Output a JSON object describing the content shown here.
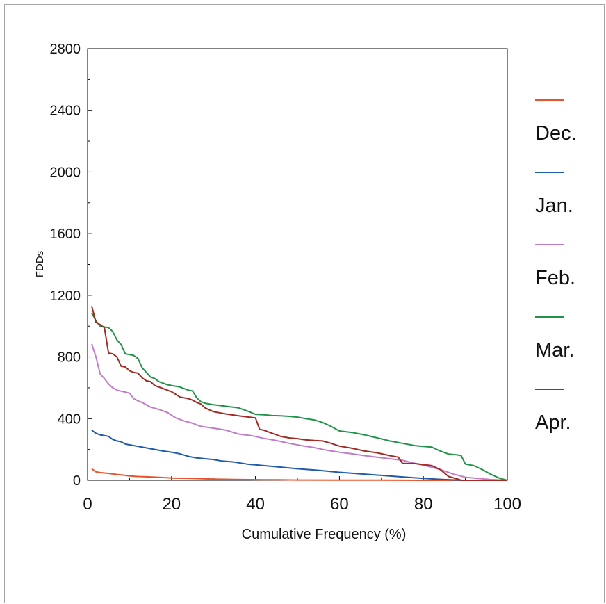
{
  "chart_data": {
    "type": "line",
    "title": "",
    "xlabel": "Cumulative Frequency (%)",
    "ylabel": "FDDs",
    "xlim": [
      0,
      100
    ],
    "ylim": [
      0,
      2800
    ],
    "xticks": [
      0,
      20,
      40,
      60,
      80,
      100
    ],
    "yticks": [
      0,
      400,
      800,
      1200,
      1600,
      2000,
      2400,
      2800
    ],
    "grid": false,
    "legend_position": "right",
    "series": [
      {
        "name": "Dec.",
        "color": "#e8532b",
        "x": [
          1,
          2,
          3,
          5,
          7,
          9,
          10,
          12,
          15,
          18,
          20,
          25,
          30,
          35,
          40,
          45,
          50,
          60,
          70,
          80,
          90,
          100
        ],
        "y": [
          75,
          55,
          50,
          45,
          38,
          32,
          28,
          25,
          22,
          18,
          15,
          12,
          8,
          6,
          4,
          3,
          2,
          1,
          1,
          0,
          0,
          0
        ]
      },
      {
        "name": "Jan.",
        "color": "#1f5ba8",
        "x": [
          1,
          2,
          3,
          4,
          5,
          6,
          7,
          8,
          9,
          10,
          12,
          14,
          16,
          18,
          20,
          22,
          24,
          26,
          28,
          30,
          32,
          35,
          38,
          40,
          42,
          45,
          48,
          50,
          55,
          60,
          65,
          70,
          75,
          80,
          85,
          88,
          90,
          95,
          100
        ],
        "y": [
          325,
          305,
          295,
          290,
          285,
          265,
          255,
          250,
          235,
          230,
          220,
          210,
          200,
          190,
          182,
          172,
          155,
          145,
          140,
          135,
          125,
          118,
          105,
          100,
          95,
          88,
          80,
          75,
          65,
          52,
          42,
          32,
          22,
          12,
          5,
          2,
          0,
          0,
          0
        ]
      },
      {
        "name": "Feb.",
        "color": "#c07cc8",
        "x": [
          1,
          2,
          3,
          4,
          5,
          6,
          7,
          8,
          9,
          10,
          11,
          12,
          13,
          15,
          17,
          19,
          21,
          23,
          25,
          27,
          30,
          33,
          36,
          39,
          42,
          45,
          48,
          51,
          54,
          57,
          60,
          63,
          66,
          69,
          72,
          75,
          78,
          81,
          84,
          87,
          90,
          93,
          96,
          100
        ],
        "y": [
          885,
          800,
          690,
          660,
          625,
          600,
          585,
          578,
          572,
          565,
          530,
          515,
          505,
          475,
          460,
          440,
          405,
          385,
          370,
          350,
          338,
          325,
          300,
          290,
          272,
          258,
          240,
          225,
          212,
          195,
          182,
          172,
          160,
          150,
          140,
          130,
          110,
          92,
          70,
          42,
          20,
          12,
          5,
          0
        ]
      },
      {
        "name": "Mar.",
        "color": "#22934a",
        "x": [
          1,
          2,
          3,
          4,
          5,
          6,
          7,
          8,
          9,
          10,
          11,
          12,
          13,
          14,
          15,
          16,
          17,
          18,
          19,
          20,
          22,
          24,
          25,
          26,
          27,
          28,
          30,
          33,
          36,
          38,
          40,
          42,
          44,
          46,
          48,
          50,
          52,
          54,
          56,
          58,
          60,
          63,
          66,
          69,
          72,
          75,
          78,
          80,
          82,
          84,
          86,
          88,
          89,
          90,
          92,
          94,
          96,
          98,
          100
        ],
        "y": [
          1085,
          1035,
          1000,
          995,
          990,
          965,
          910,
          880,
          820,
          815,
          810,
          790,
          730,
          700,
          670,
          660,
          640,
          630,
          620,
          615,
          605,
          585,
          580,
          535,
          510,
          500,
          490,
          480,
          470,
          450,
          428,
          425,
          420,
          418,
          415,
          410,
          400,
          392,
          375,
          350,
          320,
          310,
          295,
          275,
          255,
          240,
          225,
          220,
          215,
          190,
          170,
          165,
          160,
          105,
          95,
          70,
          40,
          15,
          0
        ]
      },
      {
        "name": "Apr.",
        "color": "#a12b23",
        "x": [
          1,
          2,
          3,
          4,
          5,
          6,
          7,
          8,
          9,
          10,
          11,
          12,
          13,
          14,
          15,
          16,
          17,
          18,
          19,
          20,
          22,
          24,
          25,
          26,
          27,
          28,
          30,
          33,
          36,
          40,
          41,
          42,
          44,
          46,
          48,
          50,
          52,
          54,
          56,
          58,
          60,
          63,
          66,
          69,
          72,
          74,
          75,
          78,
          80,
          82,
          84,
          86,
          88,
          89,
          90,
          95,
          100
        ],
        "y": [
          1130,
          1025,
          1010,
          990,
          825,
          820,
          800,
          740,
          735,
          710,
          700,
          695,
          665,
          645,
          640,
          615,
          605,
          595,
          585,
          575,
          540,
          530,
          520,
          505,
          495,
          470,
          445,
          430,
          418,
          405,
          330,
          325,
          305,
          285,
          275,
          270,
          262,
          258,
          255,
          240,
          222,
          208,
          190,
          178,
          160,
          150,
          110,
          108,
          102,
          95,
          70,
          25,
          10,
          0,
          0,
          0,
          0
        ]
      }
    ]
  }
}
